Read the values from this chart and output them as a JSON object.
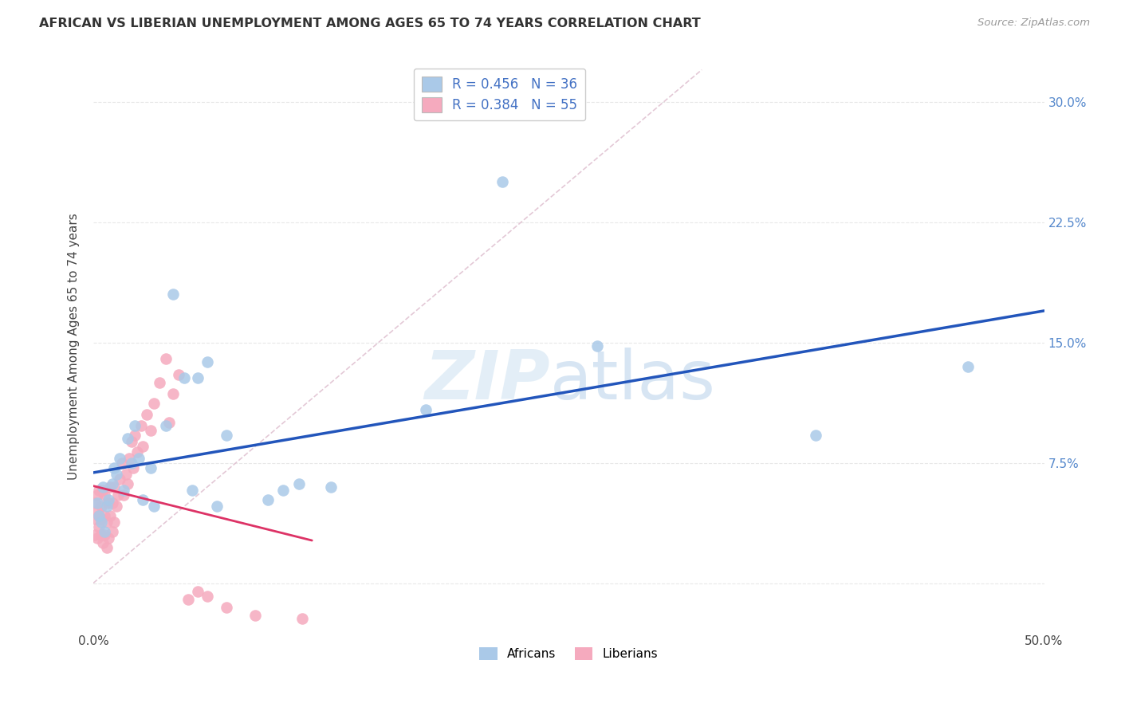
{
  "title": "AFRICAN VS LIBERIAN UNEMPLOYMENT AMONG AGES 65 TO 74 YEARS CORRELATION CHART",
  "source": "Source: ZipAtlas.com",
  "ylabel": "Unemployment Among Ages 65 to 74 years",
  "xlim": [
    0.0,
    0.5
  ],
  "ylim": [
    -0.03,
    0.325
  ],
  "xticks": [
    0.0,
    0.1,
    0.2,
    0.3,
    0.4,
    0.5
  ],
  "yticks": [
    0.0,
    0.075,
    0.15,
    0.225,
    0.3
  ],
  "watermark_zip": "ZIP",
  "watermark_atlas": "atlas",
  "legend_africans_label": "Africans",
  "legend_liberians_label": "Liberians",
  "africans_R": "R = 0.456",
  "africans_N": "N = 36",
  "liberians_R": "R = 0.384",
  "liberians_N": "N = 55",
  "africans_color": "#aac9e8",
  "liberians_color": "#f5aabe",
  "africans_line_color": "#2255bb",
  "liberians_line_color": "#dd3366",
  "diagonal_color": "#ddbbcc",
  "grid_color": "#e8e8e8",
  "background_color": "#ffffff",
  "africans_x": [
    0.002,
    0.003,
    0.004,
    0.005,
    0.006,
    0.007,
    0.008,
    0.01,
    0.011,
    0.012,
    0.014,
    0.016,
    0.018,
    0.02,
    0.022,
    0.024,
    0.026,
    0.03,
    0.032,
    0.038,
    0.042,
    0.048,
    0.052,
    0.055,
    0.06,
    0.065,
    0.07,
    0.092,
    0.1,
    0.108,
    0.125,
    0.175,
    0.215,
    0.265,
    0.38,
    0.46
  ],
  "africans_y": [
    0.05,
    0.042,
    0.038,
    0.06,
    0.032,
    0.048,
    0.052,
    0.062,
    0.072,
    0.068,
    0.078,
    0.058,
    0.09,
    0.075,
    0.098,
    0.078,
    0.052,
    0.072,
    0.048,
    0.098,
    0.18,
    0.128,
    0.058,
    0.128,
    0.138,
    0.048,
    0.092,
    0.052,
    0.058,
    0.062,
    0.06,
    0.108,
    0.25,
    0.148,
    0.092,
    0.135
  ],
  "liberians_x": [
    0.001,
    0.001,
    0.001,
    0.002,
    0.002,
    0.002,
    0.003,
    0.003,
    0.003,
    0.004,
    0.004,
    0.004,
    0.005,
    0.005,
    0.006,
    0.006,
    0.006,
    0.007,
    0.007,
    0.008,
    0.008,
    0.009,
    0.009,
    0.01,
    0.01,
    0.011,
    0.011,
    0.012,
    0.013,
    0.014,
    0.015,
    0.016,
    0.017,
    0.018,
    0.019,
    0.02,
    0.021,
    0.022,
    0.023,
    0.025,
    0.026,
    0.028,
    0.03,
    0.032,
    0.035,
    0.038,
    0.04,
    0.042,
    0.045,
    0.05,
    0.055,
    0.06,
    0.07,
    0.085,
    0.11
  ],
  "liberians_y": [
    0.05,
    0.04,
    0.03,
    0.055,
    0.045,
    0.028,
    0.042,
    0.058,
    0.035,
    0.048,
    0.03,
    0.04,
    0.025,
    0.058,
    0.042,
    0.055,
    0.03,
    0.038,
    0.022,
    0.028,
    0.05,
    0.06,
    0.042,
    0.032,
    0.05,
    0.06,
    0.038,
    0.048,
    0.055,
    0.065,
    0.075,
    0.055,
    0.068,
    0.062,
    0.078,
    0.088,
    0.072,
    0.092,
    0.082,
    0.098,
    0.085,
    0.105,
    0.095,
    0.112,
    0.125,
    0.14,
    0.1,
    0.118,
    0.13,
    -0.01,
    -0.005,
    -0.008,
    -0.015,
    -0.02,
    -0.022
  ]
}
